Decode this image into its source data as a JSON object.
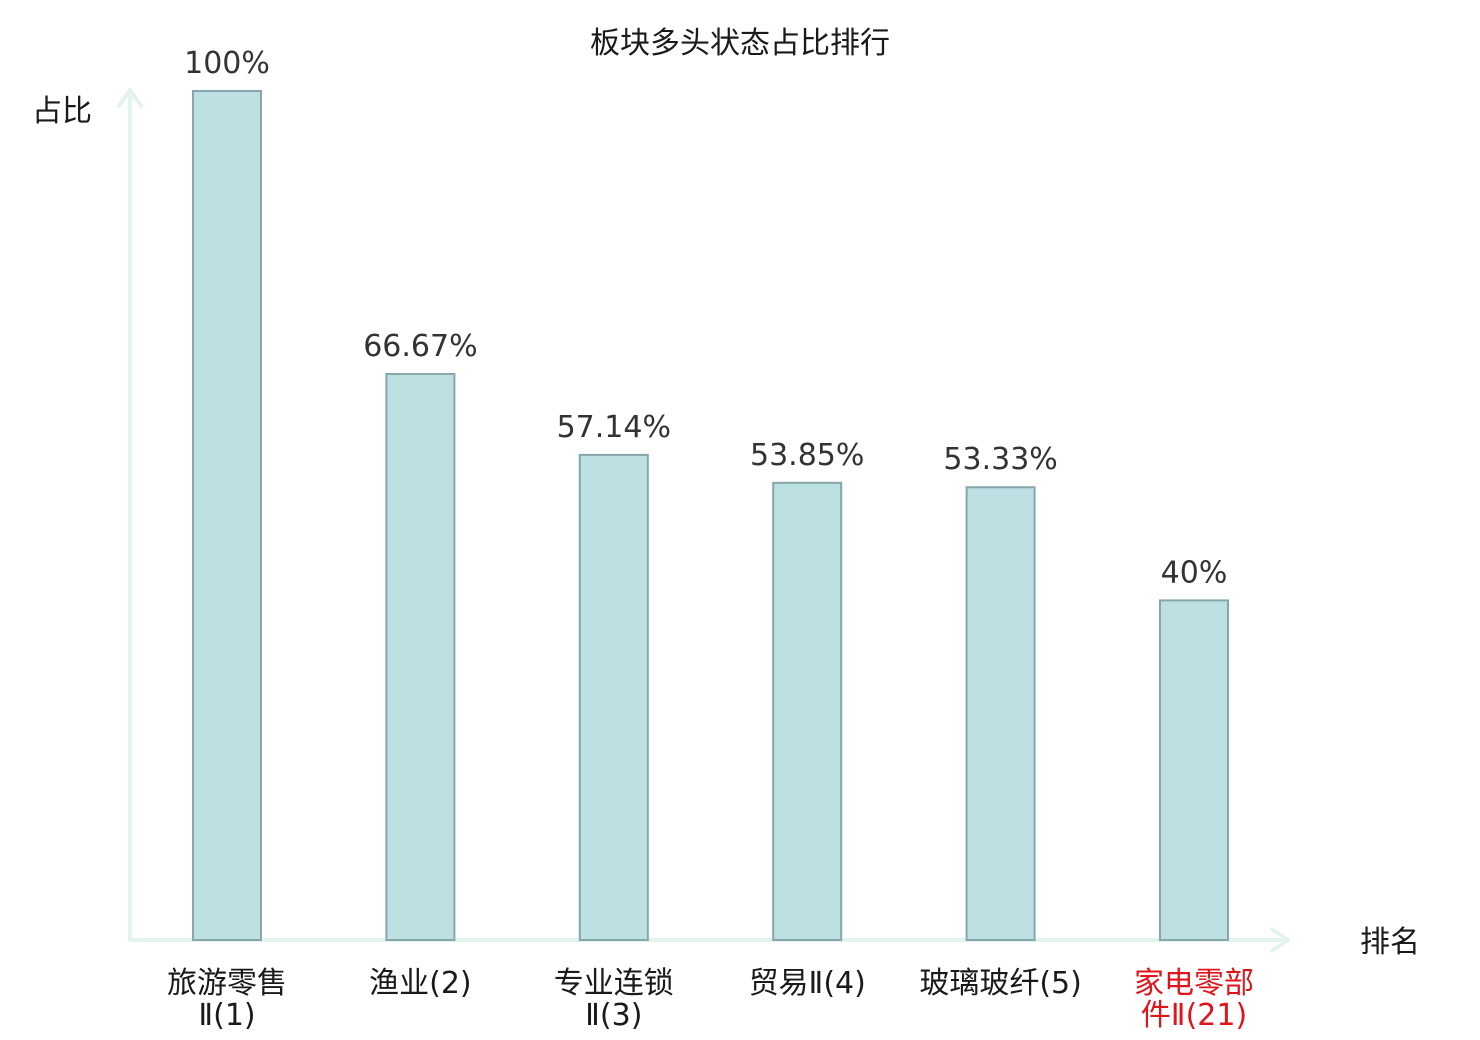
{
  "chart_data": {
    "type": "bar",
    "title": "板块多头状态占比排行",
    "xlabel": "排名",
    "ylabel": "占比",
    "categories": [
      [
        "旅游零售",
        "Ⅱ(1)"
      ],
      [
        "渔业(2)"
      ],
      [
        "专业连锁",
        "Ⅱ(3)"
      ],
      [
        "贸易Ⅱ(4)"
      ],
      [
        "玻璃玻纤(5)"
      ],
      [
        "家电零部",
        "件Ⅱ(21)"
      ]
    ],
    "values": [
      100,
      66.67,
      57.14,
      53.85,
      53.33,
      40
    ],
    "value_labels": [
      "100%",
      "66.67%",
      "57.14%",
      "53.85%",
      "53.33%",
      "40%"
    ],
    "highlight_index": 5,
    "ylim": [
      0,
      100
    ],
    "grid": false,
    "legend": "none",
    "colors": {
      "bar_fill": "#bde0e3",
      "bar_stroke": "#86a6a9",
      "axis": "#e2f3f1",
      "text": "#1a1a1a",
      "value_text": "#333333",
      "highlight_text": "#e0141a"
    }
  }
}
